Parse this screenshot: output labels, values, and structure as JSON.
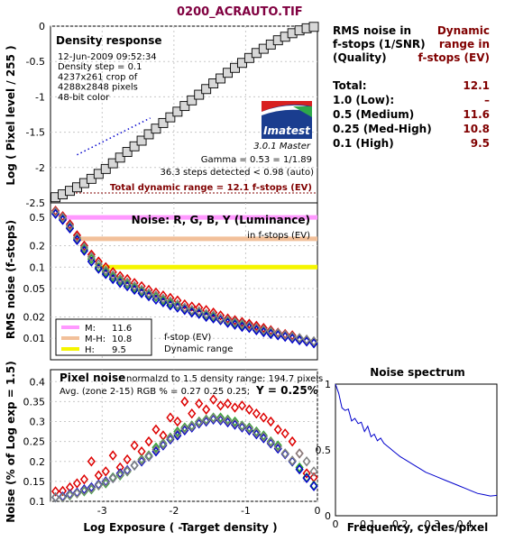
{
  "window_title": "0200_ACRAUTO.TIF",
  "colors": {
    "title": "#800040",
    "dark_red": "#800000",
    "red": "#dd0000",
    "green": "#33aa33",
    "blue": "#0000cc",
    "gray": "#808080",
    "pink": "#ff99ff",
    "peach": "#f2c09a",
    "yellow": "#f5f500"
  },
  "density_panel": {
    "heading": "Density response",
    "info_lines": [
      "12-Jun-2009 09:52:34",
      "Density step = 0.1",
      "4237x261 crop of",
      "4288x2848 pixels",
      "48-bit color"
    ],
    "logo_text": "Imatest",
    "logo_version": "3.0.1  Master",
    "gamma_text": "Gamma = 0.53 = 1/1.89",
    "steps_text": "36.3 steps detected < 0.98 (auto)",
    "dr_text": "Total dynamic range = 12.1 f-stops (EV)",
    "ylabel": "Log ( Pixel level / 255 )"
  },
  "rms_panel": {
    "heading": "Noise: R, G, B, Y (Luminance)",
    "subheading": "in f-stops (EV)",
    "ylabel": "RMS noise (f-stops)",
    "legend": [
      {
        "label": "M:",
        "value": "11.6",
        "color": "#ff99ff"
      },
      {
        "label": "M-H:",
        "value": "10.8",
        "color": "#f2c09a"
      },
      {
        "label": "H:",
        "value": "9.5",
        "color": "#f5f500"
      }
    ],
    "legend_note_1": "f-stop (EV)",
    "legend_note_2": "Dynamic range"
  },
  "pixel_noise_panel": {
    "heading": "Pixel noise",
    "normalized_text": "normalzd to 1.5 density range: 194.7 pixels",
    "avg_text": "Avg. (zone 2-15) RGB % = 0.27  0.25  0.25;",
    "y_text": "Y = 0.25%",
    "ylabel": "Noise (% of Log exp = 1.5)",
    "xlabel": "Log Exposure ( -Target density )"
  },
  "spectrum_panel": {
    "heading": "Noise spectrum",
    "xlabel": "Frequency, cycles/pixel"
  },
  "dr_table": {
    "header_left": [
      "RMS noise in",
      "f-stops (1/SNR)",
      "(Quality)"
    ],
    "header_right": [
      "Dynamic",
      "range in",
      "f-stops (EV)"
    ],
    "rows": [
      {
        "label": "Total:",
        "value": "12.1"
      },
      {
        "label": "1.0   (Low):",
        "value": "–"
      },
      {
        "label": "0.5   (Medium)",
        "value": "11.6"
      },
      {
        "label": "0.25 (Med-High)",
        "value": "10.8"
      },
      {
        "label": "0.1   (High)",
        "value": "9.5"
      }
    ]
  },
  "chart_data": [
    {
      "type": "line",
      "title": "Density response",
      "ylabel": "Log ( Pixel level / 255 )",
      "ylim": [
        -2.5,
        0
      ],
      "yticks": [
        "0",
        "-0.5",
        "-1",
        "-1.5",
        "-2",
        "-2.5"
      ],
      "yticks_value": [
        0,
        -0.5,
        -1,
        -1.5,
        -2,
        -2.5
      ],
      "xlim": [
        -3.72,
        0
      ],
      "series": [
        {
          "marker": "square",
          "x": [
            -3.65,
            -3.55,
            -3.45,
            -3.35,
            -3.25,
            -3.15,
            -3.05,
            -2.95,
            -2.85,
            -2.75,
            -2.65,
            -2.55,
            -2.45,
            -2.35,
            -2.25,
            -2.15,
            -2.05,
            -1.95,
            -1.85,
            -1.75,
            -1.65,
            -1.55,
            -1.45,
            -1.35,
            -1.25,
            -1.15,
            -1.05,
            -0.95,
            -0.85,
            -0.75,
            -0.65,
            -0.55,
            -0.45,
            -0.35,
            -0.25,
            -0.15,
            -0.05
          ],
          "y": [
            -2.42,
            -2.38,
            -2.33,
            -2.28,
            -2.22,
            -2.16,
            -2.09,
            -2.02,
            -1.94,
            -1.86,
            -1.78,
            -1.7,
            -1.62,
            -1.53,
            -1.45,
            -1.37,
            -1.29,
            -1.21,
            -1.13,
            -1.05,
            -0.97,
            -0.89,
            -0.81,
            -0.74,
            -0.66,
            -0.59,
            -0.52,
            -0.45,
            -0.38,
            -0.32,
            -0.26,
            -0.2,
            -0.15,
            -0.1,
            -0.06,
            -0.03,
            -0.01
          ]
        }
      ],
      "fit_line": {
        "x": [
          -3.35,
          -2.33
        ],
        "y": [
          -1.82,
          -1.3
        ]
      },
      "dr_marker": {
        "x": [
          -3.72,
          0
        ],
        "y": [
          -2.36,
          -2.36
        ]
      }
    },
    {
      "type": "scatter",
      "title": "Noise: R, G, B, Y (Luminance)",
      "ylabel": "RMS noise (f-stops)",
      "yscale": "log",
      "ylim": [
        0.005,
        0.8
      ],
      "yticks": [
        "0.5",
        "0.2",
        "0.1",
        "0.05",
        "0.02",
        "0.01"
      ],
      "yticks_value": [
        0.5,
        0.2,
        0.1,
        0.05,
        0.02,
        0.01
      ],
      "xlim": [
        -3.72,
        0
      ],
      "hlines": [
        {
          "name": "Medium",
          "y": 0.5,
          "x_start": -3.5,
          "color": "#ff99ff"
        },
        {
          "name": "Med-High",
          "y": 0.25,
          "x_start": -3.35,
          "color": "#f2c09a"
        },
        {
          "name": "High",
          "y": 0.1,
          "x_start": -3.0,
          "color": "#f5f500"
        }
      ],
      "x": [
        -3.65,
        -3.55,
        -3.45,
        -3.35,
        -3.25,
        -3.15,
        -3.05,
        -2.95,
        -2.85,
        -2.75,
        -2.65,
        -2.55,
        -2.45,
        -2.35,
        -2.25,
        -2.15,
        -2.05,
        -1.95,
        -1.85,
        -1.75,
        -1.65,
        -1.55,
        -1.45,
        -1.35,
        -1.25,
        -1.15,
        -1.05,
        -0.95,
        -0.85,
        -0.75,
        -0.65,
        -0.55,
        -0.45,
        -0.35,
        -0.25,
        -0.15,
        -0.05
      ],
      "series": [
        {
          "name": "R",
          "color": "#dd0000",
          "values": [
            0.62,
            0.52,
            0.4,
            0.28,
            0.2,
            0.15,
            0.12,
            0.1,
            0.085,
            0.075,
            0.068,
            0.06,
            0.054,
            0.048,
            0.044,
            0.04,
            0.037,
            0.034,
            0.03,
            0.028,
            0.027,
            0.025,
            0.023,
            0.021,
            0.019,
            0.018,
            0.017,
            0.016,
            0.015,
            0.014,
            0.013,
            0.012,
            0.0115,
            0.011,
            0.01,
            0.0095,
            0.009
          ]
        },
        {
          "name": "G",
          "color": "#33aa33",
          "values": [
            0.58,
            0.48,
            0.36,
            0.25,
            0.18,
            0.13,
            0.1,
            0.085,
            0.073,
            0.064,
            0.058,
            0.051,
            0.046,
            0.041,
            0.038,
            0.034,
            0.031,
            0.029,
            0.026,
            0.024,
            0.023,
            0.021,
            0.02,
            0.018,
            0.017,
            0.016,
            0.015,
            0.0145,
            0.0135,
            0.0125,
            0.012,
            0.0112,
            0.0108,
            0.0102,
            0.0098,
            0.0093,
            0.0088
          ]
        },
        {
          "name": "B",
          "color": "#0000cc",
          "values": [
            0.56,
            0.46,
            0.35,
            0.24,
            0.17,
            0.12,
            0.095,
            0.08,
            0.068,
            0.06,
            0.054,
            0.048,
            0.043,
            0.039,
            0.035,
            0.032,
            0.029,
            0.027,
            0.025,
            0.023,
            0.022,
            0.02,
            0.019,
            0.018,
            0.0165,
            0.0155,
            0.0145,
            0.014,
            0.013,
            0.0122,
            0.0115,
            0.011,
            0.0105,
            0.0099,
            0.0094,
            0.009,
            0.0085
          ]
        },
        {
          "name": "Y",
          "color": "#808080",
          "values": [
            0.6,
            0.5,
            0.38,
            0.26,
            0.19,
            0.14,
            0.11,
            0.09,
            0.077,
            0.068,
            0.061,
            0.054,
            0.048,
            0.043,
            0.04,
            0.036,
            0.033,
            0.03,
            0.027,
            0.025,
            0.024,
            0.022,
            0.021,
            0.019,
            0.018,
            0.017,
            0.016,
            0.015,
            0.014,
            0.0132,
            0.0125,
            0.0118,
            0.0112,
            0.0106,
            0.0101,
            0.0096,
            0.0091
          ]
        }
      ]
    },
    {
      "type": "scatter",
      "title": "Pixel noise",
      "ylabel": "Noise (% of Log exp = 1.5)",
      "xlabel": "Log Exposure ( -Target density )",
      "ylim": [
        0.1,
        0.43
      ],
      "yticks": [
        "0.4",
        "0.35",
        "0.3",
        "0.25",
        "0.2",
        "0.15",
        "0.1"
      ],
      "yticks_value": [
        0.4,
        0.35,
        0.3,
        0.25,
        0.2,
        0.15,
        0.1
      ],
      "xlim": [
        -3.72,
        0
      ],
      "xticks": [
        "-3",
        "-2",
        "-1",
        "0"
      ],
      "xticks_value": [
        -3,
        -2,
        -1,
        0
      ],
      "x": [
        -3.65,
        -3.55,
        -3.45,
        -3.35,
        -3.25,
        -3.15,
        -3.05,
        -2.95,
        -2.85,
        -2.75,
        -2.65,
        -2.55,
        -2.45,
        -2.35,
        -2.25,
        -2.15,
        -2.05,
        -1.95,
        -1.85,
        -1.75,
        -1.65,
        -1.55,
        -1.45,
        -1.35,
        -1.25,
        -1.15,
        -1.05,
        -0.95,
        -0.85,
        -0.75,
        -0.65,
        -0.55,
        -0.45,
        -0.35,
        -0.25,
        -0.15,
        -0.05
      ],
      "series": [
        {
          "name": "R",
          "color": "#dd0000",
          "values": [
            0.125,
            0.126,
            0.135,
            0.145,
            0.155,
            0.2,
            0.165,
            0.175,
            0.215,
            0.185,
            0.205,
            0.24,
            0.225,
            0.25,
            0.28,
            0.265,
            0.31,
            0.3,
            0.35,
            0.32,
            0.345,
            0.33,
            0.355,
            0.34,
            0.345,
            0.335,
            0.34,
            0.33,
            0.32,
            0.31,
            0.3,
            0.28,
            0.27,
            0.25,
            0.22,
            0.17,
            0.16
          ]
        },
        {
          "name": "G",
          "color": "#33aa33",
          "values": [
            0.11,
            0.11,
            0.115,
            0.12,
            0.125,
            0.13,
            0.14,
            0.145,
            0.16,
            0.165,
            0.175,
            0.19,
            0.205,
            0.215,
            0.235,
            0.245,
            0.26,
            0.275,
            0.285,
            0.29,
            0.3,
            0.305,
            0.31,
            0.31,
            0.305,
            0.3,
            0.29,
            0.285,
            0.275,
            0.265,
            0.25,
            0.24,
            0.22,
            0.2,
            0.185,
            0.16,
            0.14
          ]
        },
        {
          "name": "B",
          "color": "#0000cc",
          "values": [
            0.11,
            0.112,
            0.118,
            0.122,
            0.13,
            0.135,
            0.142,
            0.15,
            0.158,
            0.17,
            0.178,
            0.19,
            0.2,
            0.212,
            0.225,
            0.24,
            0.255,
            0.265,
            0.278,
            0.285,
            0.295,
            0.3,
            0.305,
            0.303,
            0.298,
            0.292,
            0.285,
            0.278,
            0.268,
            0.258,
            0.245,
            0.232,
            0.218,
            0.2,
            0.18,
            0.158,
            0.138
          ]
        },
        {
          "name": "Y",
          "color": "#808080",
          "values": [
            0.11,
            0.11,
            0.116,
            0.12,
            0.127,
            0.132,
            0.14,
            0.148,
            0.158,
            0.167,
            0.176,
            0.19,
            0.203,
            0.213,
            0.23,
            0.243,
            0.258,
            0.27,
            0.282,
            0.288,
            0.298,
            0.303,
            0.308,
            0.306,
            0.302,
            0.296,
            0.288,
            0.282,
            0.272,
            0.262,
            0.248,
            0.236,
            0.22,
            0.202,
            0.22,
            0.2,
            0.175
          ]
        }
      ]
    },
    {
      "type": "line",
      "title": "Noise spectrum",
      "xlabel": "Frequency, cycles/pixel",
      "xlim": [
        0,
        0.5
      ],
      "ylim": [
        0,
        1
      ],
      "xticks": [
        "0",
        "0.1",
        "0.2",
        "0.3",
        "0.4"
      ],
      "xticks_value": [
        0,
        0.1,
        0.2,
        0.3,
        0.4
      ],
      "yticks": [
        "1",
        "0.5",
        "0"
      ],
      "yticks_value": [
        1,
        0.5,
        0
      ],
      "series": [
        {
          "color": "#0000cc",
          "x": [
            0,
            0.01,
            0.02,
            0.03,
            0.04,
            0.05,
            0.06,
            0.07,
            0.08,
            0.09,
            0.1,
            0.11,
            0.12,
            0.13,
            0.14,
            0.15,
            0.16,
            0.17,
            0.18,
            0.19,
            0.2,
            0.22,
            0.24,
            0.26,
            0.28,
            0.3,
            0.32,
            0.34,
            0.36,
            0.38,
            0.4,
            0.42,
            0.44,
            0.46,
            0.48,
            0.5
          ],
          "y": [
            1.0,
            0.93,
            0.82,
            0.8,
            0.81,
            0.72,
            0.74,
            0.7,
            0.71,
            0.64,
            0.68,
            0.6,
            0.62,
            0.57,
            0.59,
            0.55,
            0.53,
            0.51,
            0.49,
            0.47,
            0.45,
            0.42,
            0.39,
            0.36,
            0.33,
            0.31,
            0.29,
            0.27,
            0.25,
            0.23,
            0.21,
            0.19,
            0.17,
            0.16,
            0.15,
            0.155
          ]
        }
      ]
    }
  ]
}
